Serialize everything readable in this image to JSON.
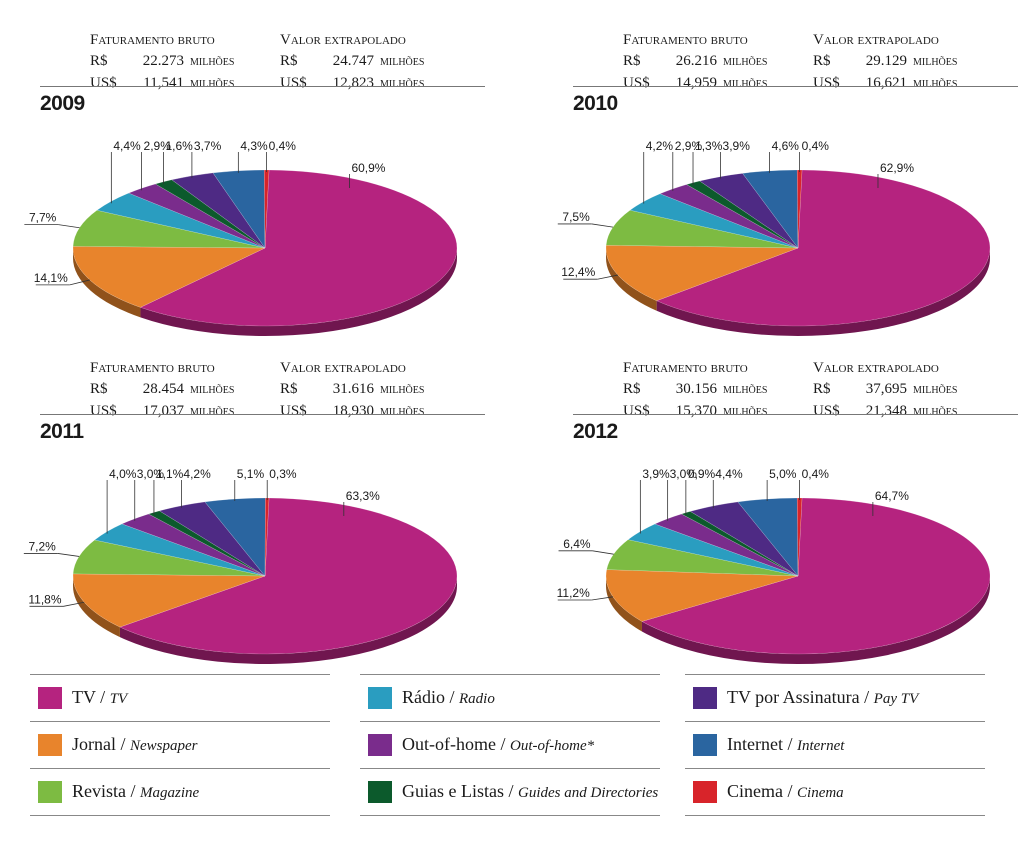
{
  "legend": [
    {
      "key": "tv",
      "pt": "TV",
      "en": "TV",
      "color": "#b5237f"
    },
    {
      "key": "jornal",
      "pt": "Jornal",
      "en": "Newspaper",
      "color": "#e8842c"
    },
    {
      "key": "revista",
      "pt": "Revista",
      "en": "Magazine",
      "color": "#7dbb42"
    },
    {
      "key": "radio",
      "pt": "Rádio",
      "en": "Radio",
      "color": "#2a9dc0"
    },
    {
      "key": "ooh",
      "pt": "Out-of-home",
      "en": "Out-of-home*",
      "color": "#7a2c8c"
    },
    {
      "key": "guias",
      "pt": "Guias e Listas",
      "en": "Guides and Directories",
      "color": "#0c5a2c"
    },
    {
      "key": "paytv",
      "pt": "TV por Assinatura",
      "en": "Pay TV",
      "color": "#4e2a84"
    },
    {
      "key": "internet",
      "pt": "Internet",
      "en": "Internet",
      "color": "#2a65a0"
    },
    {
      "key": "cinema",
      "pt": "Cinema",
      "en": "Cinema",
      "color": "#d8242a"
    }
  ],
  "finance_labels": {
    "gross": "Faturamento bruto",
    "extrapolated": "Valor extrapolado",
    "brl": "R$",
    "usd": "US$",
    "unit": "milhões"
  },
  "chart_data": [
    {
      "type": "pie",
      "title": "2009",
      "faturamento_bruto": {
        "brl": "22.273",
        "usd": "11,541"
      },
      "valor_extrapolado": {
        "brl": "24.747",
        "usd": "12,823"
      },
      "categories": [
        "TV",
        "Jornal",
        "Revista",
        "Rádio",
        "Out-of-home",
        "Guias e Listas",
        "TV por Assinatura",
        "Internet",
        "Cinema"
      ],
      "values": [
        60.9,
        14.1,
        7.7,
        4.4,
        2.9,
        1.6,
        3.7,
        4.3,
        0.4
      ],
      "labels": [
        "60,9%",
        "14,1%",
        "7,7%",
        "4,4%",
        "2,9%",
        "1,6%",
        "3,7%",
        "4,3%",
        "0,4%"
      ]
    },
    {
      "type": "pie",
      "title": "2010",
      "faturamento_bruto": {
        "brl": "26.216",
        "usd": "14,959"
      },
      "valor_extrapolado": {
        "brl": "29.129",
        "usd": "16,621"
      },
      "categories": [
        "TV",
        "Jornal",
        "Revista",
        "Rádio",
        "Out-of-home",
        "Guias e Listas",
        "TV por Assinatura",
        "Internet",
        "Cinema"
      ],
      "values": [
        62.9,
        12.4,
        7.5,
        4.2,
        2.9,
        1.3,
        3.9,
        4.6,
        0.4
      ],
      "labels": [
        "62,9%",
        "12,4%",
        "7,5%",
        "4,2%",
        "2,9%",
        "1,3%",
        "3,9%",
        "4,6%",
        "0,4%"
      ]
    },
    {
      "type": "pie",
      "title": "2011",
      "faturamento_bruto": {
        "brl": "28.454",
        "usd": "17,037"
      },
      "valor_extrapolado": {
        "brl": "31.616",
        "usd": "18,930"
      },
      "categories": [
        "TV",
        "Jornal",
        "Revista",
        "Rádio",
        "Out-of-home",
        "Guias e Listas",
        "TV por Assinatura",
        "Internet",
        "Cinema"
      ],
      "values": [
        63.3,
        11.8,
        7.2,
        4.0,
        3.0,
        1.1,
        4.2,
        5.1,
        0.3
      ],
      "labels": [
        "63,3%",
        "11,8%",
        "7,2%",
        "4,0%",
        "3,0%",
        "1,1%",
        "4,2%",
        "5,1%",
        "0,3%"
      ]
    },
    {
      "type": "pie",
      "title": "2012",
      "faturamento_bruto": {
        "brl": "30.156",
        "usd": "15,370"
      },
      "valor_extrapolado": {
        "brl": "37,695",
        "usd": "21,348"
      },
      "categories": [
        "TV",
        "Jornal",
        "Revista",
        "Rádio",
        "Out-of-home",
        "Guias e Listas",
        "TV por Assinatura",
        "Internet",
        "Cinema"
      ],
      "values": [
        64.7,
        11.2,
        6.4,
        3.9,
        3.0,
        0.9,
        4.4,
        5.0,
        0.4
      ],
      "labels": [
        "64,7%",
        "11,2%",
        "6,4%",
        "3,9%",
        "3,0%",
        "0,9%",
        "4,4%",
        "5,0%",
        "0,4%"
      ]
    }
  ]
}
